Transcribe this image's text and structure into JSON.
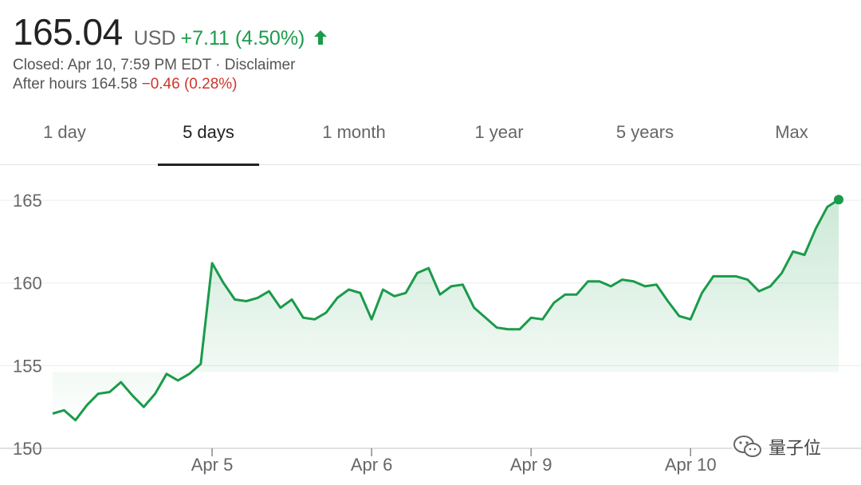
{
  "quote": {
    "price": "165.04",
    "currency": "USD",
    "change": "+7.11 (4.50%)",
    "change_direction_icon": "arrow-up-icon",
    "closed_text": "Closed: Apr 10, 7:59 PM EDT · Disclaimer",
    "after_hours_label": "After hours 164.58",
    "after_hours_change": "−0.46 (0.28%)"
  },
  "colors": {
    "positive": "#1a9b4a",
    "negative": "#d0342c",
    "line": "#1a9b4a",
    "area_fill": "#1a9b4a"
  },
  "range_tabs": [
    {
      "label": "1 day"
    },
    {
      "label": "5 days",
      "active": true
    },
    {
      "label": "1 month"
    },
    {
      "label": "1 year"
    },
    {
      "label": "5 years"
    },
    {
      "label": "Max"
    }
  ],
  "watermark": {
    "icon": "wechat-icon",
    "text": "量子位"
  },
  "chart_data": {
    "type": "area",
    "ylim": [
      150,
      166.5
    ],
    "yticks": [
      150,
      155,
      160,
      165
    ],
    "xticks": [
      {
        "label": "Apr 5",
        "index": 14
      },
      {
        "label": "Apr 6",
        "index": 28
      },
      {
        "label": "Apr 9",
        "index": 42
      },
      {
        "label": "Apr 10",
        "index": 56
      }
    ],
    "grid": "horizontal",
    "series": [
      {
        "values": [
          152.1,
          152.3,
          151.7,
          152.6,
          153.3,
          153.4,
          154.0,
          153.2,
          152.5,
          153.3,
          154.5,
          154.1,
          154.5,
          155.1,
          161.2,
          160.0,
          159.0,
          158.9,
          159.1,
          159.5,
          158.5,
          159.0,
          157.9,
          157.8,
          158.2,
          159.1,
          159.6,
          159.4,
          157.8,
          159.6,
          159.2,
          159.4,
          160.6,
          160.9,
          159.3,
          159.8,
          159.9,
          158.5,
          157.9,
          157.3,
          157.2,
          157.2,
          157.9,
          157.8,
          158.8,
          159.3,
          159.3,
          160.1,
          160.1,
          159.8,
          160.2,
          160.1,
          159.8,
          159.9,
          158.9,
          158.0,
          157.8,
          159.4,
          160.4,
          160.4,
          160.4,
          160.2,
          159.5,
          159.8,
          160.6,
          161.9,
          161.7,
          163.3,
          164.6,
          165.04
        ]
      }
    ]
  }
}
